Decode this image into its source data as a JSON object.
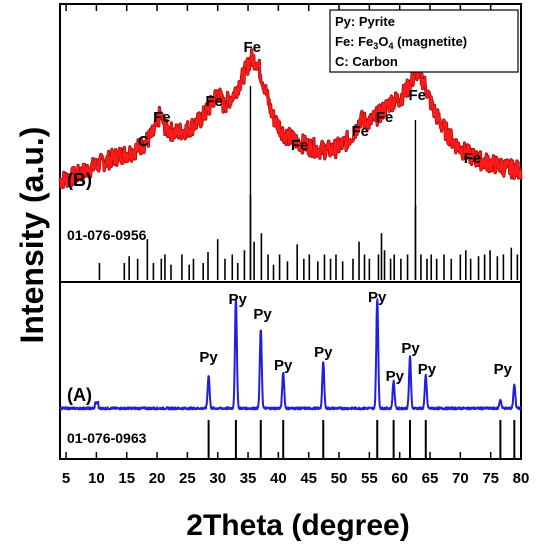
{
  "chart_data": {
    "type": "line",
    "xlabel": "2Theta (degree)",
    "ylabel": "Intensity (a.u.)",
    "xlim": [
      4,
      80
    ],
    "x_ticks": [
      "5",
      "10",
      "15",
      "20",
      "25",
      "30",
      "35",
      "40",
      "45",
      "50",
      "55",
      "60",
      "65",
      "70",
      "75",
      "80"
    ],
    "x_tick_values": [
      5,
      10,
      15,
      20,
      25,
      30,
      35,
      40,
      45,
      50,
      55,
      60,
      65,
      70,
      75,
      80
    ],
    "legend": {
      "position": "top-right",
      "lines": [
        {
          "pre": "Py: Pyrite",
          "sub": "",
          "post": ""
        },
        {
          "pre": "Fe: Fe",
          "sub": "3",
          "mid": "O",
          "sub2": "4",
          "post": " (magnetite)"
        },
        {
          "pre": "C: Carbon",
          "sub": "",
          "post": ""
        }
      ]
    },
    "panels": [
      {
        "name": "B",
        "label": "(B)",
        "color": "#ff1a1a",
        "reference_code": "01-076-0956",
        "sample_points": [
          [
            4,
            0.28
          ],
          [
            6,
            0.3
          ],
          [
            8,
            0.33
          ],
          [
            10,
            0.37
          ],
          [
            12,
            0.4
          ],
          [
            14,
            0.43
          ],
          [
            16,
            0.45
          ],
          [
            18,
            0.5
          ],
          [
            19.5,
            0.56
          ],
          [
            20.5,
            0.67
          ],
          [
            21.5,
            0.58
          ],
          [
            23,
            0.56
          ],
          [
            25,
            0.58
          ],
          [
            27,
            0.63
          ],
          [
            28.5,
            0.7
          ],
          [
            30,
            0.8
          ],
          [
            31,
            0.72
          ],
          [
            32.5,
            0.78
          ],
          [
            34,
            0.88
          ],
          [
            35.5,
            1.0
          ],
          [
            36.5,
            0.98
          ],
          [
            37.5,
            0.86
          ],
          [
            39,
            0.66
          ],
          [
            41,
            0.55
          ],
          [
            43,
            0.51
          ],
          [
            45,
            0.48
          ],
          [
            47,
            0.46
          ],
          [
            49,
            0.46
          ],
          [
            51,
            0.5
          ],
          [
            52.5,
            0.56
          ],
          [
            53.5,
            0.64
          ],
          [
            55,
            0.62
          ],
          [
            57,
            0.68
          ],
          [
            58.5,
            0.74
          ],
          [
            60,
            0.76
          ],
          [
            61.5,
            0.83
          ],
          [
            62.8,
            0.92
          ],
          [
            64,
            0.86
          ],
          [
            65.5,
            0.7
          ],
          [
            67,
            0.6
          ],
          [
            69,
            0.5
          ],
          [
            71,
            0.44
          ],
          [
            73,
            0.4
          ],
          [
            76,
            0.37
          ],
          [
            78,
            0.35
          ],
          [
            80,
            0.34
          ]
        ],
        "peaks": [
          {
            "label": "C",
            "x": 18.4
          },
          {
            "label": "Fe",
            "x": 20.8
          },
          {
            "label": "Fe",
            "x": 29.4
          },
          {
            "label": "Fe",
            "x": 35.7
          },
          {
            "label": "Fe",
            "x": 43.5
          },
          {
            "label": "Fe",
            "x": 53.5
          },
          {
            "label": "Fe",
            "x": 57.5
          },
          {
            "label": "Fe",
            "x": 62.9
          },
          {
            "label": "Fe",
            "x": 72.0
          }
        ],
        "reference_lines": [
          [
            10.5,
            0.2
          ],
          [
            14.6,
            0.2
          ],
          [
            15.4,
            0.28
          ],
          [
            16.8,
            0.25
          ],
          [
            18.4,
            0.48
          ],
          [
            19.4,
            0.2
          ],
          [
            20.7,
            0.25
          ],
          [
            21.3,
            0.3
          ],
          [
            22.3,
            0.18
          ],
          [
            24.1,
            0.3
          ],
          [
            25.3,
            0.18
          ],
          [
            26.0,
            0.25
          ],
          [
            27.6,
            0.2
          ],
          [
            28.4,
            0.33
          ],
          [
            30.0,
            0.48
          ],
          [
            31.2,
            0.25
          ],
          [
            32.4,
            0.3
          ],
          [
            33.3,
            0.2
          ],
          [
            34.4,
            0.35
          ],
          [
            35.4,
            1.0
          ],
          [
            36.0,
            0.45
          ],
          [
            37.2,
            0.55
          ],
          [
            38.3,
            0.3
          ],
          [
            39.2,
            0.18
          ],
          [
            40.2,
            0.3
          ],
          [
            41.5,
            0.22
          ],
          [
            43.1,
            0.42
          ],
          [
            44.2,
            0.25
          ],
          [
            45.1,
            0.3
          ],
          [
            46.5,
            0.22
          ],
          [
            47.6,
            0.3
          ],
          [
            48.6,
            0.25
          ],
          [
            49.5,
            0.3
          ],
          [
            50.6,
            0.22
          ],
          [
            52.3,
            0.25
          ],
          [
            53.3,
            0.45
          ],
          [
            54.2,
            0.3
          ],
          [
            55.0,
            0.25
          ],
          [
            56.5,
            0.3
          ],
          [
            57.0,
            0.55
          ],
          [
            57.5,
            0.35
          ],
          [
            58.5,
            0.25
          ],
          [
            59.1,
            0.3
          ],
          [
            60.2,
            0.25
          ],
          [
            61.3,
            0.3
          ],
          [
            62.6,
            0.88
          ],
          [
            63.5,
            0.3
          ],
          [
            64.5,
            0.25
          ],
          [
            65.2,
            0.3
          ],
          [
            66.1,
            0.25
          ],
          [
            67.3,
            0.3
          ],
          [
            68.5,
            0.25
          ],
          [
            70.0,
            0.3
          ],
          [
            70.9,
            0.35
          ],
          [
            71.7,
            0.25
          ],
          [
            73.0,
            0.28
          ],
          [
            74.0,
            0.3
          ],
          [
            74.9,
            0.35
          ],
          [
            76.1,
            0.28
          ],
          [
            77.1,
            0.3
          ],
          [
            78.4,
            0.38
          ],
          [
            79.4,
            0.3
          ]
        ]
      },
      {
        "name": "A",
        "label": "(A)",
        "color": "#1f1fe0",
        "reference_code": "01-076-0963",
        "peaks": [
          {
            "label": "Py",
            "x": 28.5,
            "y": 0.3
          },
          {
            "label": "Py",
            "x": 33.0,
            "y": 1.0
          },
          {
            "label": "Py",
            "x": 37.1,
            "y": 0.72
          },
          {
            "label": "Py",
            "x": 40.8,
            "y": 0.33
          },
          {
            "label": "Py",
            "x": 47.4,
            "y": 0.42
          },
          {
            "label": "Py",
            "x": 56.3,
            "y": 1.0
          },
          {
            "label": "Py",
            "x": 59.0,
            "y": 0.25
          },
          {
            "label": "Py",
            "x": 61.7,
            "y": 0.47
          },
          {
            "label": "Py",
            "x": 64.3,
            "y": 0.3
          },
          {
            "label": "Py",
            "x": 76.6,
            "y": 0.08
          },
          {
            "label": "Py",
            "x": 78.9,
            "y": 0.22
          }
        ],
        "reference_lines": [
          [
            28.5,
            1
          ],
          [
            33.0,
            1
          ],
          [
            37.1,
            1
          ],
          [
            40.8,
            1
          ],
          [
            47.4,
            1
          ],
          [
            56.3,
            1
          ],
          [
            59.0,
            1
          ],
          [
            61.7,
            1
          ],
          [
            64.3,
            1
          ],
          [
            76.6,
            1
          ],
          [
            78.9,
            1
          ]
        ]
      }
    ]
  }
}
